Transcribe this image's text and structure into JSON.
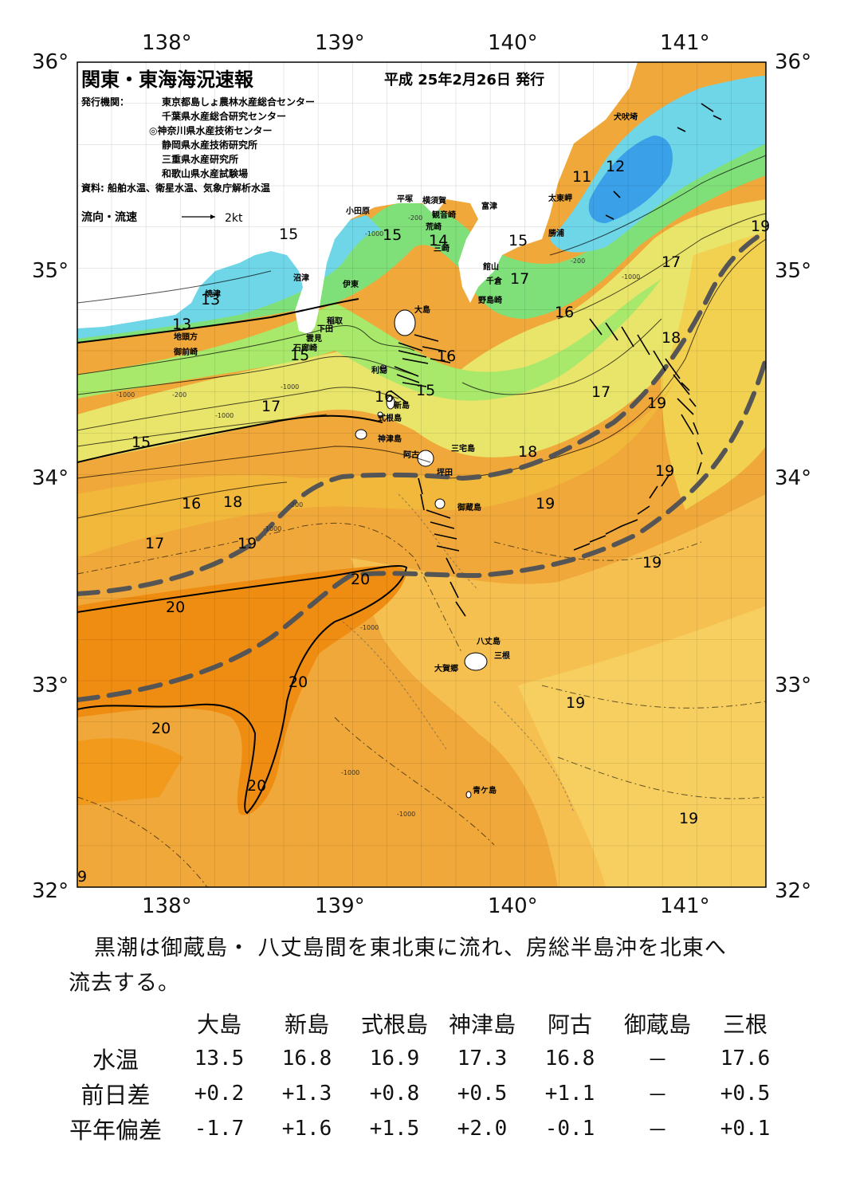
{
  "header": {
    "title": "関東・東海海況速報",
    "date": "平成 25年2月26日 発行",
    "issuer_label": "発行機関：",
    "issuers": [
      "東京都島しょ農林水産総合センター",
      "千葉県水産総合研究センター",
      "◎神奈川県水産技術センター",
      "静岡県水産技術研究所",
      "三重県水産研究所",
      "和歌山県水産試験場"
    ],
    "source": "資料: 船舶水温、衛星水温、気象庁解析水温",
    "legend_label": "流向・流速",
    "legend_scale": "2kt"
  },
  "axes": {
    "lon_labels": [
      "138°",
      "139°",
      "140°",
      "141°"
    ],
    "lat_labels": [
      "36°",
      "35°",
      "34°",
      "33°",
      "32°"
    ]
  },
  "places": [
    "犬吠埼",
    "太東岬",
    "勝浦",
    "館山",
    "千倉",
    "野島崎",
    "富津",
    "横須賀",
    "観音崎",
    "荒崎",
    "三崎",
    "平塚",
    "小田原",
    "沼津",
    "伊東",
    "稲取",
    "下田",
    "雲見",
    "石廊崎",
    "焼津",
    "地頭方",
    "御前崎",
    "大島",
    "利島",
    "新島",
    "式根島",
    "神津島",
    "阿古",
    "三宅島",
    "坪田",
    "御蔵島",
    "八丈島",
    "三根",
    "大賀郷",
    "青ケ島"
  ],
  "isotherm_labels": [
    "15",
    "15",
    "14",
    "15",
    "17",
    "16",
    "11",
    "12",
    "17",
    "19",
    "18",
    "16",
    "15",
    "16",
    "17",
    "17",
    "19",
    "15",
    "18",
    "19",
    "16",
    "18",
    "17",
    "19",
    "19",
    "20",
    "20",
    "20",
    "20",
    "20",
    "19",
    "19",
    "19",
    "13",
    "13",
    "15",
    "9"
  ],
  "depth_labels": [
    "-200",
    "-1000",
    "-200",
    "-1000",
    "-1000",
    "-200",
    "-1000",
    "-1000",
    "-1000",
    "-200",
    "-1000",
    "-1000",
    "-1000"
  ],
  "colors": {
    "cold": "#3aa0e8",
    "cyan": "#6fd6e8",
    "green": "#7fe07a",
    "yellow": "#e9e46a",
    "orange_light": "#f3bc3c",
    "orange": "#f29a1c",
    "kuroshio_axis": "#555555"
  },
  "summary": {
    "line1": "黒潮は御蔵島・ 八丈島間を東北東に流れ、房総半島沖を北東へ",
    "line2": "流去する。"
  },
  "table": {
    "stations": [
      "大島",
      "新島",
      "式根島",
      "神津島",
      "阿古",
      "御蔵島",
      "三根"
    ],
    "rows": [
      {
        "label": "水温",
        "values": [
          "13.5",
          "16.8",
          "16.9",
          "17.3",
          "16.8",
          "－",
          "17.6"
        ]
      },
      {
        "label": "前日差",
        "values": [
          "+0.2",
          "+1.3",
          "+0.8",
          "+0.5",
          "+1.1",
          "－",
          "+0.5"
        ]
      },
      {
        "label": "平年偏差",
        "values": [
          "-1.7",
          "+1.6",
          "+1.5",
          "+2.0",
          "-0.1",
          "－",
          "+0.1"
        ]
      }
    ]
  }
}
